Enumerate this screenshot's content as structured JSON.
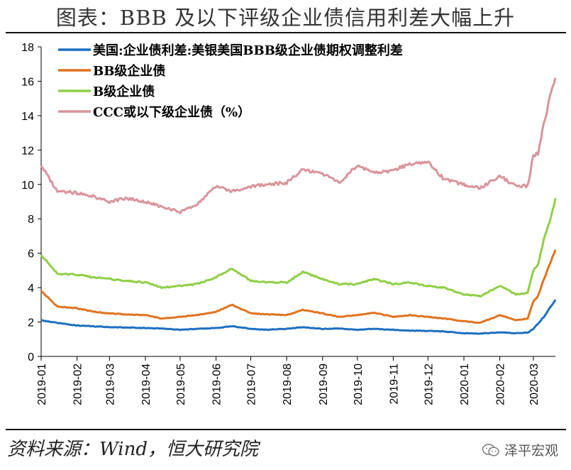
{
  "header": {
    "title": "图表：BBB 及以下评级企业债信用利差大幅上升"
  },
  "footer": {
    "source": "资料来源：Wind，恒大研究院",
    "watermark": "泽平宏观",
    "watermark_icon": "wechat-icon"
  },
  "chart_data": {
    "type": "line",
    "title": "图表：BBB 及以下评级企业债信用利差大幅上升",
    "xlabel": "",
    "ylabel": "",
    "ylim": [
      0,
      18
    ],
    "yticks": [
      0,
      2,
      4,
      6,
      8,
      10,
      12,
      14,
      16,
      18
    ],
    "xlim": [
      "2019-01-01",
      "2020-03-20"
    ],
    "xticks": [
      "2019-01",
      "2019-02",
      "2019-03",
      "2019-04",
      "2019-05",
      "2019-06",
      "2019-07",
      "2019-08",
      "2019-09",
      "2019-10",
      "2019-11",
      "2019-12",
      "2020-01",
      "2020-02",
      "2020-03"
    ],
    "grid": false,
    "legend": "top-left",
    "series": [
      {
        "name": "美国:企业债利差:美银美国BBB级企业债期权调整利差",
        "color": "#1f6fc0",
        "x": [
          "2019-01-01",
          "2019-01-15",
          "2019-02-01",
          "2019-02-15",
          "2019-03-01",
          "2019-03-15",
          "2019-04-01",
          "2019-04-15",
          "2019-05-01",
          "2019-05-15",
          "2019-06-01",
          "2019-06-15",
          "2019-07-01",
          "2019-07-15",
          "2019-08-01",
          "2019-08-15",
          "2019-09-01",
          "2019-09-15",
          "2019-10-01",
          "2019-10-15",
          "2019-11-01",
          "2019-11-15",
          "2019-12-01",
          "2019-12-15",
          "2020-01-01",
          "2020-01-15",
          "2020-02-01",
          "2020-02-15",
          "2020-02-25",
          "2020-03-01",
          "2020-03-05",
          "2020-03-10",
          "2020-03-15",
          "2020-03-20"
        ],
        "values": [
          2.1,
          1.95,
          1.8,
          1.75,
          1.7,
          1.68,
          1.65,
          1.62,
          1.55,
          1.6,
          1.65,
          1.75,
          1.6,
          1.55,
          1.6,
          1.7,
          1.6,
          1.62,
          1.55,
          1.6,
          1.55,
          1.5,
          1.48,
          1.45,
          1.35,
          1.33,
          1.4,
          1.35,
          1.38,
          1.6,
          1.9,
          2.3,
          2.8,
          3.3
        ]
      },
      {
        "name": "BB级企业债",
        "color": "#e0731f",
        "x": [
          "2019-01-01",
          "2019-01-15",
          "2019-02-01",
          "2019-02-15",
          "2019-03-01",
          "2019-03-15",
          "2019-04-01",
          "2019-04-15",
          "2019-05-01",
          "2019-05-15",
          "2019-06-01",
          "2019-06-15",
          "2019-07-01",
          "2019-07-15",
          "2019-08-01",
          "2019-08-15",
          "2019-09-01",
          "2019-09-15",
          "2019-10-01",
          "2019-10-15",
          "2019-11-01",
          "2019-11-15",
          "2019-12-01",
          "2019-12-15",
          "2020-01-01",
          "2020-01-15",
          "2020-02-01",
          "2020-02-15",
          "2020-02-25",
          "2020-03-01",
          "2020-03-05",
          "2020-03-10",
          "2020-03-15",
          "2020-03-20"
        ],
        "values": [
          3.8,
          2.9,
          2.8,
          2.6,
          2.5,
          2.45,
          2.4,
          2.2,
          2.3,
          2.4,
          2.6,
          3.0,
          2.5,
          2.45,
          2.4,
          2.7,
          2.5,
          2.3,
          2.4,
          2.55,
          2.3,
          2.4,
          2.3,
          2.2,
          2.05,
          1.95,
          2.4,
          2.1,
          2.2,
          3.2,
          3.5,
          4.5,
          5.3,
          6.2
        ]
      },
      {
        "name": "B级企业债",
        "color": "#8fcf45",
        "x": [
          "2019-01-01",
          "2019-01-15",
          "2019-02-01",
          "2019-02-15",
          "2019-03-01",
          "2019-03-15",
          "2019-04-01",
          "2019-04-15",
          "2019-05-01",
          "2019-05-15",
          "2019-06-01",
          "2019-06-15",
          "2019-07-01",
          "2019-07-15",
          "2019-08-01",
          "2019-08-15",
          "2019-09-01",
          "2019-09-15",
          "2019-10-01",
          "2019-10-15",
          "2019-11-01",
          "2019-11-15",
          "2019-12-01",
          "2019-12-15",
          "2020-01-01",
          "2020-01-15",
          "2020-02-01",
          "2020-02-15",
          "2020-02-25",
          "2020-03-01",
          "2020-03-05",
          "2020-03-10",
          "2020-03-15",
          "2020-03-20"
        ],
        "values": [
          5.9,
          4.8,
          4.75,
          4.6,
          4.5,
          4.4,
          4.3,
          4.0,
          4.1,
          4.2,
          4.6,
          5.1,
          4.4,
          4.3,
          4.3,
          4.9,
          4.5,
          4.2,
          4.2,
          4.5,
          4.2,
          4.3,
          4.1,
          4.0,
          3.6,
          3.5,
          4.1,
          3.6,
          3.7,
          5.0,
          5.3,
          6.8,
          7.8,
          9.2
        ]
      },
      {
        "name": "CCC或以下级企业债（%）",
        "color": "#d9949a",
        "x": [
          "2019-01-01",
          "2019-01-15",
          "2019-02-01",
          "2019-02-15",
          "2019-03-01",
          "2019-03-15",
          "2019-04-01",
          "2019-04-15",
          "2019-05-01",
          "2019-05-15",
          "2019-06-01",
          "2019-06-15",
          "2019-07-01",
          "2019-07-15",
          "2019-08-01",
          "2019-08-15",
          "2019-09-01",
          "2019-09-15",
          "2019-10-01",
          "2019-10-15",
          "2019-11-01",
          "2019-11-15",
          "2019-12-01",
          "2019-12-15",
          "2020-01-01",
          "2020-01-15",
          "2020-02-01",
          "2020-02-15",
          "2020-02-25",
          "2020-03-01",
          "2020-03-05",
          "2020-03-10",
          "2020-03-15",
          "2020-03-20"
        ],
        "values": [
          11.1,
          9.6,
          9.5,
          9.3,
          9.0,
          9.2,
          9.0,
          8.7,
          8.4,
          8.8,
          9.9,
          9.6,
          9.9,
          10.0,
          10.1,
          10.9,
          10.6,
          10.1,
          11.1,
          10.7,
          10.8,
          11.2,
          11.3,
          10.3,
          10.0,
          9.8,
          10.5,
          9.9,
          9.9,
          11.7,
          11.8,
          13.5,
          15.0,
          16.2
        ]
      }
    ]
  }
}
